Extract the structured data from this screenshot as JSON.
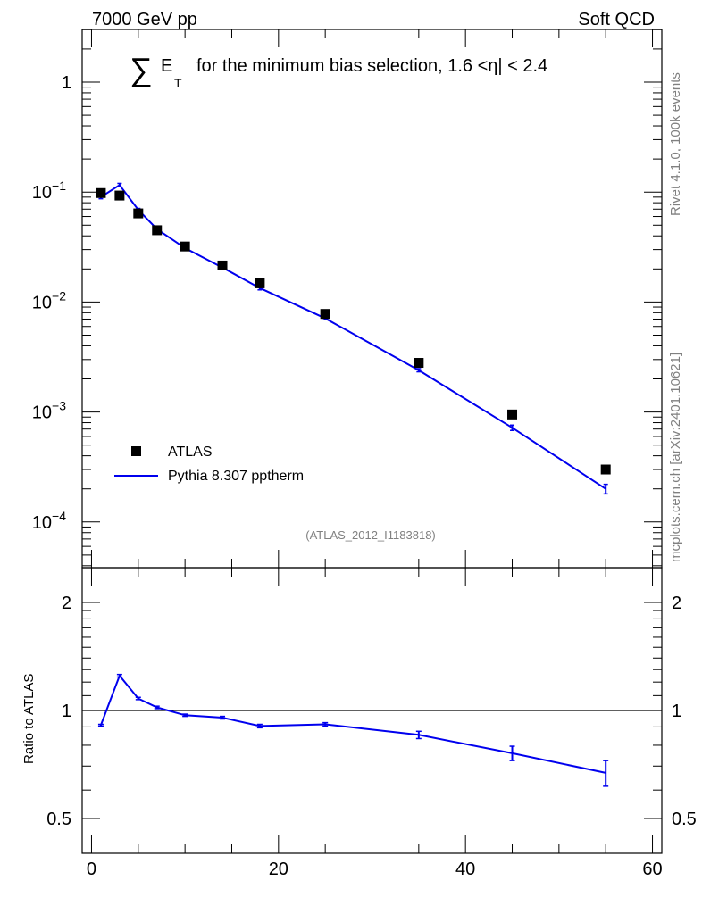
{
  "header": {
    "energy_label": "7000 GeV pp",
    "process_label": "Soft QCD"
  },
  "side_labels": {
    "rivet": "Rivet 4.1.0,  100k events",
    "source": "mcplots.cern.ch [arXiv:2401.10621]"
  },
  "main_plot": {
    "title_prefix": "∑",
    "title_var": "E",
    "title_sub": "T",
    "title_rest": "for the minimum bias selection, 1.6 <",
    "title_eta": "η",
    "title_end": "| < 2.4",
    "watermark": "(ATLAS_2012_I1183818)",
    "y_ticks": [
      {
        "value": 1,
        "base": "1",
        "exp": ""
      },
      {
        "value": 0.1,
        "base": "10",
        "exp": "−1"
      },
      {
        "value": 0.01,
        "base": "10",
        "exp": "−2"
      },
      {
        "value": 0.001,
        "base": "10",
        "exp": "−3"
      },
      {
        "value": 0.0001,
        "base": "10",
        "exp": "−4"
      }
    ],
    "legend": {
      "data_label": "ATLAS",
      "mc_label": "Pythia 8.307 pptherm"
    }
  },
  "ratio_plot": {
    "ylabel": "Ratio to ATLAS",
    "y_ticks": [
      "0.5",
      "1",
      "2"
    ],
    "x_ticks": [
      "0",
      "20",
      "40",
      "60"
    ]
  },
  "colors": {
    "data": "#000000",
    "mc": "#0000ee",
    "frame": "#000000"
  },
  "chart_data": [
    {
      "type": "scatter",
      "title": "∑ E_T for the minimum bias selection, 1.6 < |η| < 2.4",
      "xlabel": "",
      "ylabel": "",
      "xlim": [
        -1,
        61
      ],
      "ylim": [
        4e-05,
        2.8
      ],
      "yscale": "log",
      "legend_position": "bottom-left",
      "series": [
        {
          "name": "ATLAS",
          "style": "markers",
          "x": [
            1,
            3,
            5,
            7,
            10,
            14,
            18,
            25,
            35,
            45,
            55
          ],
          "y": [
            0.098,
            0.093,
            0.064,
            0.045,
            0.032,
            0.0215,
            0.0148,
            0.0078,
            0.0028,
            0.00095,
            0.0003
          ]
        },
        {
          "name": "Pythia 8.307 pptherm",
          "style": "line",
          "x": [
            1,
            3,
            5,
            7,
            10,
            14,
            18,
            25,
            35,
            45,
            55
          ],
          "y": [
            0.09,
            0.116,
            0.069,
            0.046,
            0.031,
            0.0206,
            0.0134,
            0.0071,
            0.0024,
            0.00072,
            0.0002
          ],
          "err": [
            0.003,
            0.004,
            0.002,
            0.0015,
            0.001,
            0.0006,
            0.0005,
            0.0002,
            8e-05,
            4e-05,
            2e-05
          ]
        }
      ]
    },
    {
      "type": "line",
      "title": "",
      "xlabel": "",
      "ylabel": "Ratio to ATLAS",
      "xlim": [
        -1,
        61
      ],
      "ylim": [
        0.4,
        2.4
      ],
      "yscale": "log",
      "reference_line": 1,
      "series": [
        {
          "name": "Pythia 8.307 pptherm / ATLAS",
          "x": [
            1,
            3,
            5,
            7,
            10,
            14,
            18,
            25,
            35,
            45,
            55
          ],
          "y": [
            0.91,
            1.25,
            1.08,
            1.02,
            0.97,
            0.955,
            0.905,
            0.915,
            0.855,
            0.76,
            0.67
          ],
          "err": [
            0.005,
            0.01,
            0.008,
            0.008,
            0.007,
            0.008,
            0.01,
            0.01,
            0.02,
            0.035,
            0.055
          ]
        }
      ]
    }
  ]
}
